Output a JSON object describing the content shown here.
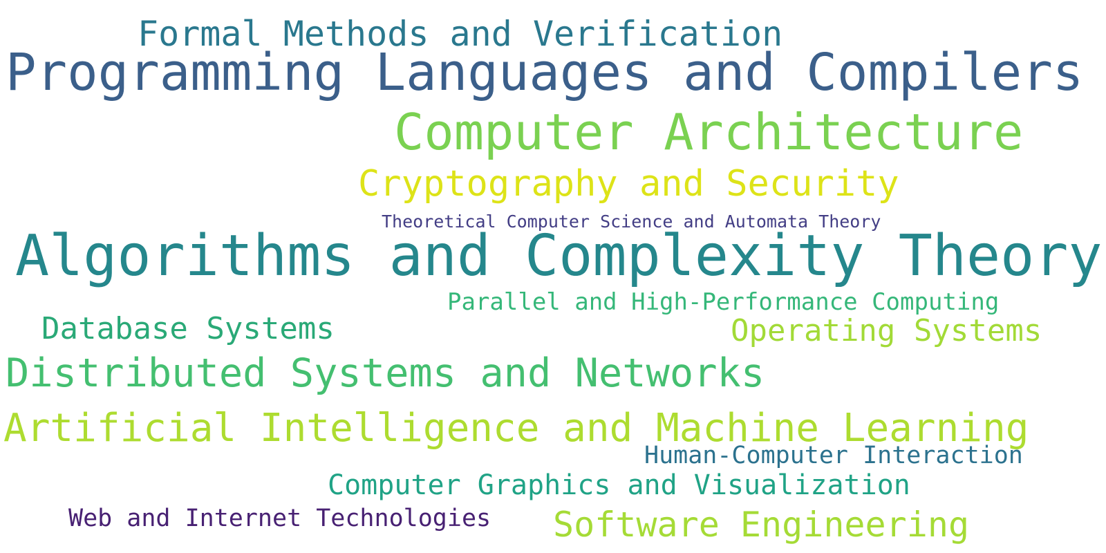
{
  "words": [
    {
      "text": "Formal Methods and Verification",
      "color": "#2a788e"
    },
    {
      "text": "Programming Languages and Compilers",
      "color": "#3b5f8a"
    },
    {
      "text": "Computer Architecture",
      "color": "#7ad151"
    },
    {
      "text": "Cryptography and Security",
      "color": "#dde318"
    },
    {
      "text": "Theoretical Computer Science and Automata Theory",
      "color": "#433e85"
    },
    {
      "text": "Algorithms and Complexity Theory",
      "color": "#25878c"
    },
    {
      "text": "Parallel and High-Performance Computing",
      "color": "#35b779"
    },
    {
      "text": "Database Systems",
      "color": "#2aa977"
    },
    {
      "text": "Operating Systems",
      "color": "#a2da37"
    },
    {
      "text": "Distributed Systems and Networks",
      "color": "#44bf70"
    },
    {
      "text": "Artificial Intelligence and Machine Learning",
      "color": "#addc30"
    },
    {
      "text": "Human-Computer Interaction",
      "color": "#2c728e"
    },
    {
      "text": "Computer Graphics and Visualization",
      "color": "#20a386"
    },
    {
      "text": "Web and Internet Technologies",
      "color": "#482173"
    },
    {
      "text": "Software Engineering",
      "color": "#a5db36"
    }
  ]
}
